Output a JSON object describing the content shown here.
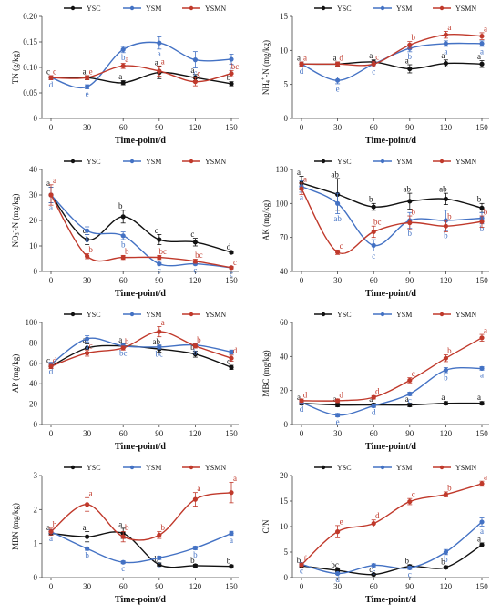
{
  "chart_data": [
    {
      "type": "line",
      "ylabel": "TN (g/kg)",
      "xlabel": "Time-point/d",
      "x": [
        0,
        30,
        60,
        90,
        120,
        150
      ],
      "ylim": [
        0,
        0.2
      ],
      "yticks": [
        "0",
        "0.05",
        "0.10",
        "0.15",
        "0.20"
      ],
      "legend": [
        "YSC",
        "YSM",
        "YSMN"
      ],
      "series": [
        {
          "name": "YSC",
          "values": [
            0.08,
            0.08,
            0.07,
            0.09,
            0.08,
            0.068
          ],
          "letters": [
            "c",
            "a",
            "a",
            "a",
            "a",
            "b"
          ],
          "errors": [
            0.004,
            0.004,
            0.004,
            0.012,
            0.006,
            0.004
          ]
        },
        {
          "name": "YSM",
          "values": [
            0.08,
            0.062,
            0.135,
            0.148,
            0.115,
            0.116
          ],
          "letters": [
            "d",
            "e",
            "b",
            "a",
            "c",
            "c"
          ],
          "errors": [
            0.004,
            0.004,
            0.006,
            0.012,
            0.016,
            0.01
          ]
        },
        {
          "name": "YSMN",
          "values": [
            0.08,
            0.08,
            0.103,
            0.093,
            0.072,
            0.088
          ],
          "letters": [
            "c",
            "e",
            "a",
            "a",
            "c",
            "bc"
          ],
          "errors": [
            0.004,
            0.004,
            0.005,
            0.01,
            0.008,
            0.006
          ]
        }
      ]
    },
    {
      "type": "line",
      "ylabel": "NH4+-N (mg/kg)",
      "xlabel": "Time-point/d",
      "x": [
        0,
        30,
        60,
        90,
        120,
        150
      ],
      "ylim": [
        0,
        15
      ],
      "yticks": [
        "0",
        "5",
        "10",
        "15"
      ],
      "legend": [
        "YSC",
        "YSM",
        "YSMN"
      ],
      "series": [
        {
          "name": "YSC",
          "values": [
            8.0,
            8.0,
            8.3,
            7.3,
            8.1,
            8.0
          ],
          "letters": [
            "a",
            "a",
            "a",
            "a",
            "a",
            "a"
          ],
          "errors": [
            0.3,
            0.3,
            0.3,
            0.6,
            0.5,
            0.5
          ]
        },
        {
          "name": "YSM",
          "values": [
            8.0,
            5.6,
            8.0,
            10.3,
            11.0,
            11.0
          ],
          "letters": [
            "d",
            "e",
            "c",
            "b",
            "a",
            "a"
          ],
          "errors": [
            0.3,
            0.5,
            0.4,
            0.5,
            0.4,
            0.4
          ]
        },
        {
          "name": "YSMN",
          "values": [
            8.0,
            8.0,
            8.0,
            10.8,
            12.3,
            12.1
          ],
          "letters": [
            "a",
            "d",
            "c",
            "b",
            "a",
            "a"
          ],
          "errors": [
            0.3,
            0.3,
            0.4,
            0.5,
            0.5,
            0.5
          ]
        }
      ]
    },
    {
      "type": "line",
      "ylabel": "NO3--N (mg/kg)",
      "xlabel": "Time-point/d",
      "x": [
        0,
        30,
        60,
        90,
        120,
        150
      ],
      "ylim": [
        0,
        40
      ],
      "yticks": [
        "0",
        "10",
        "20",
        "30",
        "40"
      ],
      "legend": [
        "YSC",
        "YSM",
        "YSMN"
      ],
      "series": [
        {
          "name": "YSC",
          "values": [
            30,
            12.5,
            21.5,
            12.5,
            11.5,
            7.5
          ],
          "letters": [
            "a",
            "c",
            "b",
            "c",
            "c",
            "d"
          ],
          "errors": [
            3,
            2,
            2.5,
            2,
            1.5,
            0.5
          ]
        },
        {
          "name": "YSM",
          "values": [
            30,
            16,
            14,
            3,
            3,
            1.5
          ],
          "letters": [
            "a",
            "b",
            "b",
            "c",
            "c",
            "c"
          ],
          "errors": [
            3,
            1.5,
            1.5,
            0.5,
            0.5,
            0.5
          ]
        },
        {
          "name": "YSMN",
          "values": [
            30,
            6,
            5.5,
            5.5,
            4,
            1.5
          ],
          "letters": [
            "a",
            "b",
            "b",
            "bc",
            "bc",
            "c"
          ],
          "errors": [
            4,
            1,
            0.8,
            0.8,
            0.8,
            0.5
          ]
        }
      ]
    },
    {
      "type": "line",
      "ylabel": "AK (mg/kg)",
      "xlabel": "Time-point/d",
      "x": [
        0,
        30,
        60,
        90,
        120,
        150
      ],
      "ylim": [
        40,
        130
      ],
      "yticks": [
        "40",
        "70",
        "100",
        "130"
      ],
      "legend": [
        "YSC",
        "YSM",
        "YSMN"
      ],
      "series": [
        {
          "name": "YSC",
          "values": [
            118,
            108,
            97,
            102,
            104,
            96
          ],
          "letters": [
            "a",
            "ab",
            "b",
            "ab",
            "ab",
            "b"
          ],
          "errors": [
            6,
            14,
            3,
            7,
            5,
            4
          ]
        },
        {
          "name": "YSM",
          "values": [
            115,
            100,
            63,
            85,
            85,
            87
          ],
          "letters": [
            "a",
            "ab",
            "c",
            "b",
            "b",
            "b"
          ],
          "errors": [
            5,
            9,
            5,
            7,
            9,
            5
          ]
        },
        {
          "name": "YSMN",
          "values": [
            113,
            57,
            75,
            83,
            80,
            84
          ],
          "letters": [
            "a",
            "c",
            "bc",
            "b",
            "b",
            "b"
          ],
          "errors": [
            5,
            2,
            5,
            6,
            5,
            5
          ]
        }
      ]
    },
    {
      "type": "line",
      "ylabel": "AP (mg/kg)",
      "xlabel": "Time-point/d",
      "x": [
        0,
        30,
        60,
        90,
        120,
        150
      ],
      "ylim": [
        0,
        100
      ],
      "yticks": [
        "0",
        "20",
        "40",
        "60",
        "80",
        "100"
      ],
      "legend": [
        "YSC",
        "YSM",
        "YSMN"
      ],
      "series": [
        {
          "name": "YSC",
          "values": [
            57,
            75,
            77,
            74,
            69,
            56
          ],
          "letters": [
            "c",
            "a",
            "a",
            "ab",
            "b",
            "c"
          ],
          "errors": [
            2,
            4,
            2,
            3,
            3,
            2
          ]
        },
        {
          "name": "YSM",
          "values": [
            59,
            84,
            77,
            76,
            78,
            71
          ],
          "letters": [
            "d",
            "a",
            "bc",
            "bc",
            "b",
            "c"
          ],
          "errors": [
            2,
            3,
            2,
            2,
            2,
            2
          ]
        },
        {
          "name": "YSMN",
          "values": [
            57,
            70,
            75,
            91,
            77,
            65
          ],
          "letters": [
            "d",
            "c",
            "b",
            "a",
            "b",
            "d"
          ],
          "errors": [
            2,
            3,
            2,
            5,
            2,
            3
          ]
        }
      ]
    },
    {
      "type": "line",
      "ylabel": "MBC (mg/kg)",
      "xlabel": "Time-point/d",
      "x": [
        0,
        30,
        60,
        90,
        120,
        150
      ],
      "ylim": [
        0,
        60
      ],
      "yticks": [
        "0",
        "20",
        "40",
        "60"
      ],
      "legend": [
        "YSC",
        "YSM",
        "YSMN"
      ],
      "series": [
        {
          "name": "YSC",
          "values": [
            12.5,
            11.5,
            11.5,
            11.5,
            12.5,
            12.5
          ],
          "letters": [
            "a",
            "a",
            "a",
            "a",
            "a",
            "a"
          ],
          "errors": [
            1,
            1,
            1,
            1,
            1,
            1
          ]
        },
        {
          "name": "YSM",
          "values": [
            13,
            5.5,
            11,
            18,
            32,
            33
          ],
          "letters": [
            "d",
            "e",
            "d",
            "c",
            "b",
            "a"
          ],
          "errors": [
            1,
            1,
            1,
            1,
            1.5,
            1
          ]
        },
        {
          "name": "YSMN",
          "values": [
            14,
            14,
            16,
            26,
            39,
            51
          ],
          "letters": [
            "d",
            "d",
            "d",
            "c",
            "b",
            "a"
          ],
          "errors": [
            1,
            1,
            1,
            1.5,
            2,
            2
          ]
        }
      ]
    },
    {
      "type": "line",
      "ylabel": "MBN (mg/kg)",
      "xlabel": "Time-point/d",
      "x": [
        0,
        30,
        60,
        90,
        120,
        150
      ],
      "ylim": [
        0,
        3
      ],
      "yticks": [
        "0",
        "1",
        "2",
        "3"
      ],
      "legend": [
        "YSC",
        "YSM",
        "YSMN"
      ],
      "series": [
        {
          "name": "YSC",
          "values": [
            1.3,
            1.2,
            1.3,
            0.38,
            0.35,
            0.33
          ],
          "letters": [
            "a",
            "a",
            "a",
            "b",
            "b",
            "b"
          ],
          "errors": [
            0.05,
            0.15,
            0.15,
            0.05,
            0.04,
            0.04
          ]
        },
        {
          "name": "YSM",
          "values": [
            1.35,
            0.85,
            0.45,
            0.58,
            0.87,
            1.3
          ],
          "letters": [
            "a",
            "b",
            "c",
            "c",
            "b",
            "a"
          ],
          "errors": [
            0.06,
            0.05,
            0.04,
            0.05,
            0.05,
            0.06
          ]
        },
        {
          "name": "YSMN",
          "values": [
            1.35,
            2.15,
            1.2,
            1.25,
            2.3,
            2.5
          ],
          "letters": [
            "b",
            "a",
            "b",
            "b",
            "a",
            "a"
          ],
          "errors": [
            0.1,
            0.2,
            0.15,
            0.1,
            0.2,
            0.3
          ]
        }
      ]
    },
    {
      "type": "line",
      "ylabel": "C/N",
      "xlabel": "Time-point/d",
      "x": [
        0,
        30,
        60,
        90,
        120,
        150
      ],
      "ylim": [
        0,
        20
      ],
      "yticks": [
        "0",
        "5",
        "10",
        "15",
        "20"
      ],
      "legend": [
        "YSC",
        "YSM",
        "YSMN"
      ],
      "series": [
        {
          "name": "YSC",
          "values": [
            2.3,
            1.4,
            0.6,
            2.2,
            2.0,
            6.4
          ],
          "letters": [
            "b",
            "bc",
            "c",
            "b",
            "b",
            "a"
          ],
          "errors": [
            0.3,
            0.3,
            0.2,
            0.3,
            0.3,
            0.4
          ]
        },
        {
          "name": "YSM",
          "values": [
            2.6,
            0.8,
            2.4,
            1.9,
            5.0,
            10.9
          ],
          "letters": [
            "c",
            "d",
            "c",
            "c",
            "b",
            "a"
          ],
          "errors": [
            0.3,
            0.2,
            0.3,
            0.3,
            0.5,
            0.8
          ]
        },
        {
          "name": "YSMN",
          "values": [
            2.5,
            9.0,
            10.6,
            14.9,
            16.3,
            18.4
          ],
          "letters": [
            "f",
            "e",
            "d",
            "c",
            "b",
            "a"
          ],
          "errors": [
            0.3,
            1.2,
            0.7,
            0.6,
            0.5,
            0.5
          ]
        }
      ]
    }
  ],
  "colors": {
    "YSC": "#111111",
    "YSM": "#4472c4",
    "YSMN": "#c0392b"
  }
}
